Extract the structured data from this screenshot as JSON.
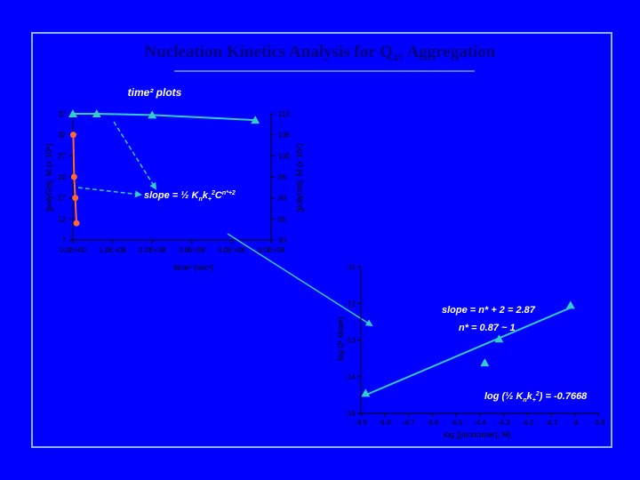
{
  "title": {
    "main": "Nucleation Kinetics Analysis for Q",
    "sub": "47",
    "rest": " Aggregation"
  },
  "colors": {
    "background": "#0000ff",
    "text": "#000080",
    "line": "#33cccc",
    "marker_triangle": "#33cccc",
    "marker_circle": "#ff6633",
    "slope_text": "#ffffff"
  },
  "chart_data": [
    {
      "type": "scatter",
      "title": "time² plots",
      "xlabel": "time² (sec²)",
      "ylabel_left": "[polyGln], M  (x 10⁹)",
      "ylabel_right": "[polyGln], M  (x 10⁹)",
      "xlim": [
        0,
        500000000
      ],
      "ylim_left": [
        7,
        37
      ],
      "ylim_right": [
        80,
        110
      ],
      "x_ticks": [
        "0.0E+00",
        "1.0E+08",
        "2.0E+08",
        "3.0E+08",
        "4.0E+08",
        "5.0E+08"
      ],
      "y_ticks_left": [
        "7",
        "12",
        "17",
        "22",
        "27",
        "32",
        "37"
      ],
      "y_ticks_right": [
        "80",
        "85",
        "90",
        "95",
        "100",
        "105",
        "110"
      ],
      "series": [
        {
          "axis": "left",
          "marker": "circle",
          "x": [
            1000000,
            3000000,
            6000000,
            9000000
          ],
          "y": [
            32,
            22,
            17,
            11
          ]
        },
        {
          "axis": "right",
          "marker": "triangle",
          "x": [
            0,
            60000000,
            200000000,
            460000000
          ],
          "y": [
            110,
            110,
            109.7,
            108.5
          ]
        }
      ],
      "annotations": {
        "slope": "slope = ½ K",
        "slope_sub1": "n",
        "slope_mid": "k",
        "slope_sub2": "+",
        "slope_sup1": "2",
        "slope_c": "C",
        "slope_sup2": "n*+2"
      }
    },
    {
      "type": "scatter",
      "xlabel": "log ([monomer], M)",
      "ylabel": "log (t² slope)",
      "xlim": [
        -4.9,
        -3.9
      ],
      "ylim": [
        -15,
        -11
      ],
      "x_ticks": [
        "-4.9",
        "-4.8",
        "-4.7",
        "-4.6",
        "-4.5",
        "-4.4",
        "-4.3",
        "-4.2",
        "-4.1",
        "-4",
        "-3.9"
      ],
      "y_ticks": [
        "-15",
        "-14",
        "-13",
        "-12",
        "-11"
      ],
      "points": {
        "x": [
          -4.88,
          -4.38,
          -4.32,
          -4.02
        ],
        "y": [
          -14.45,
          -13.62,
          -12.97,
          -12.05
        ]
      },
      "fit": {
        "x": [
          -4.88,
          -4.02
        ],
        "y": [
          -14.5,
          -12.12
        ]
      },
      "annotations": {
        "slope": "slope = n* + 2 = 2.87",
        "nstar": "n* = 0.87 ~ 1",
        "logk": "log (½ K",
        "logk_sub1": "n",
        "logk_mid": "k",
        "logk_sub2": "+",
        "logk_sup": "2",
        "logk_end": ") = -0.7668"
      }
    }
  ]
}
